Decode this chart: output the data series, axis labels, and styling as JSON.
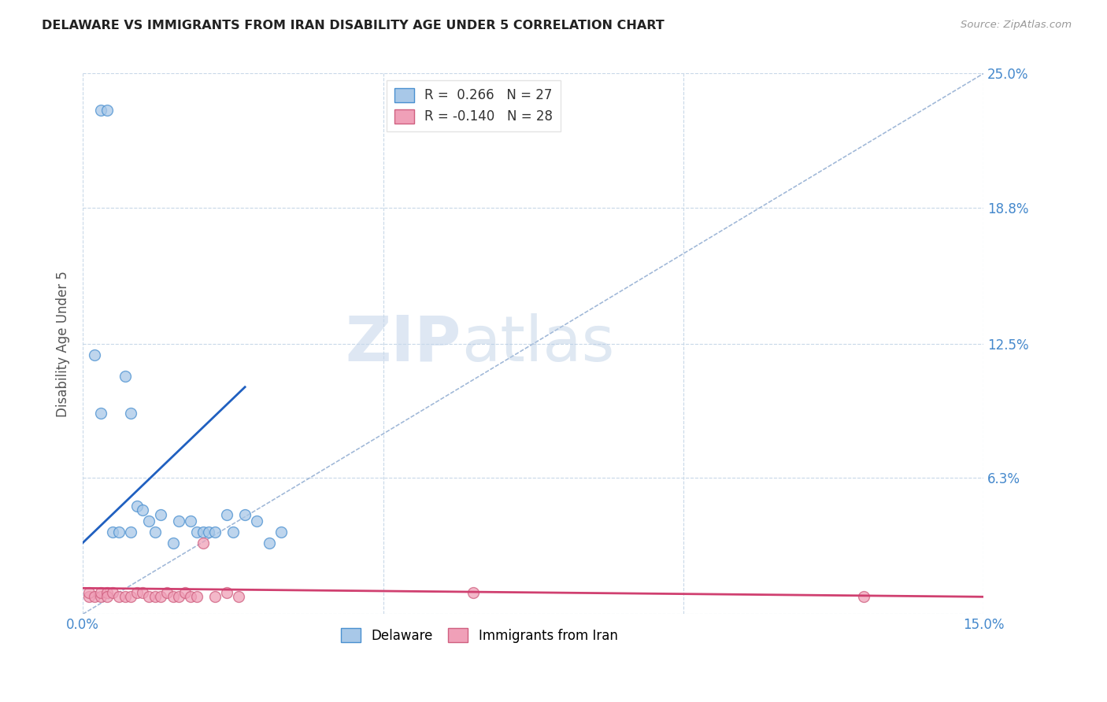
{
  "title": "DELAWARE VS IMMIGRANTS FROM IRAN DISABILITY AGE UNDER 5 CORRELATION CHART",
  "source": "Source: ZipAtlas.com",
  "ylabel": "Disability Age Under 5",
  "xlim": [
    0.0,
    0.15
  ],
  "ylim": [
    0.0,
    0.25
  ],
  "ytick_positions": [
    0.0,
    0.063,
    0.125,
    0.188,
    0.25
  ],
  "ytick_labels": [
    "",
    "6.3%",
    "12.5%",
    "18.8%",
    "25.0%"
  ],
  "xtick_positions": [
    0.0,
    0.05,
    0.1,
    0.15
  ],
  "xtick_labels": [
    "0.0%",
    "",
    "",
    "15.0%"
  ],
  "legend_blue_r": "R =  0.266",
  "legend_blue_n": "N = 27",
  "legend_pink_r": "R = -0.140",
  "legend_pink_n": "N = 28",
  "legend_labels": [
    "Delaware",
    "Immigrants from Iran"
  ],
  "blue_fill": "#a8c8e8",
  "blue_edge": "#4a90d0",
  "pink_fill": "#f0a0b8",
  "pink_edge": "#d06080",
  "blue_line_color": "#2060c0",
  "pink_line_color": "#d04070",
  "diagonal_color": "#a0b8d8",
  "watermark_zip": "ZIP",
  "watermark_atlas": "atlas",
  "blue_dots_x": [
    0.003,
    0.004,
    0.007,
    0.008,
    0.009,
    0.01,
    0.011,
    0.012,
    0.013,
    0.015,
    0.016,
    0.018,
    0.019,
    0.02,
    0.021,
    0.022,
    0.024,
    0.025,
    0.027,
    0.029,
    0.031,
    0.033,
    0.002,
    0.003,
    0.005,
    0.006,
    0.008
  ],
  "blue_dots_y": [
    0.233,
    0.233,
    0.11,
    0.093,
    0.05,
    0.048,
    0.043,
    0.038,
    0.046,
    0.033,
    0.043,
    0.043,
    0.038,
    0.038,
    0.038,
    0.038,
    0.046,
    0.038,
    0.046,
    0.043,
    0.033,
    0.038,
    0.12,
    0.093,
    0.038,
    0.038,
    0.038
  ],
  "pink_dots_x": [
    0.001,
    0.001,
    0.002,
    0.003,
    0.003,
    0.004,
    0.004,
    0.005,
    0.006,
    0.007,
    0.008,
    0.009,
    0.01,
    0.011,
    0.012,
    0.013,
    0.014,
    0.015,
    0.016,
    0.017,
    0.018,
    0.019,
    0.02,
    0.022,
    0.024,
    0.026,
    0.065,
    0.13
  ],
  "pink_dots_y": [
    0.008,
    0.01,
    0.008,
    0.008,
    0.01,
    0.01,
    0.008,
    0.01,
    0.008,
    0.008,
    0.008,
    0.01,
    0.01,
    0.008,
    0.008,
    0.008,
    0.01,
    0.008,
    0.008,
    0.01,
    0.008,
    0.008,
    0.033,
    0.008,
    0.01,
    0.008,
    0.01,
    0.008
  ],
  "blue_line_x": [
    0.0,
    0.027
  ],
  "blue_line_y": [
    0.033,
    0.105
  ],
  "pink_line_x": [
    0.0,
    0.15
  ],
  "pink_line_y": [
    0.012,
    0.008
  ],
  "dot_size": 100
}
